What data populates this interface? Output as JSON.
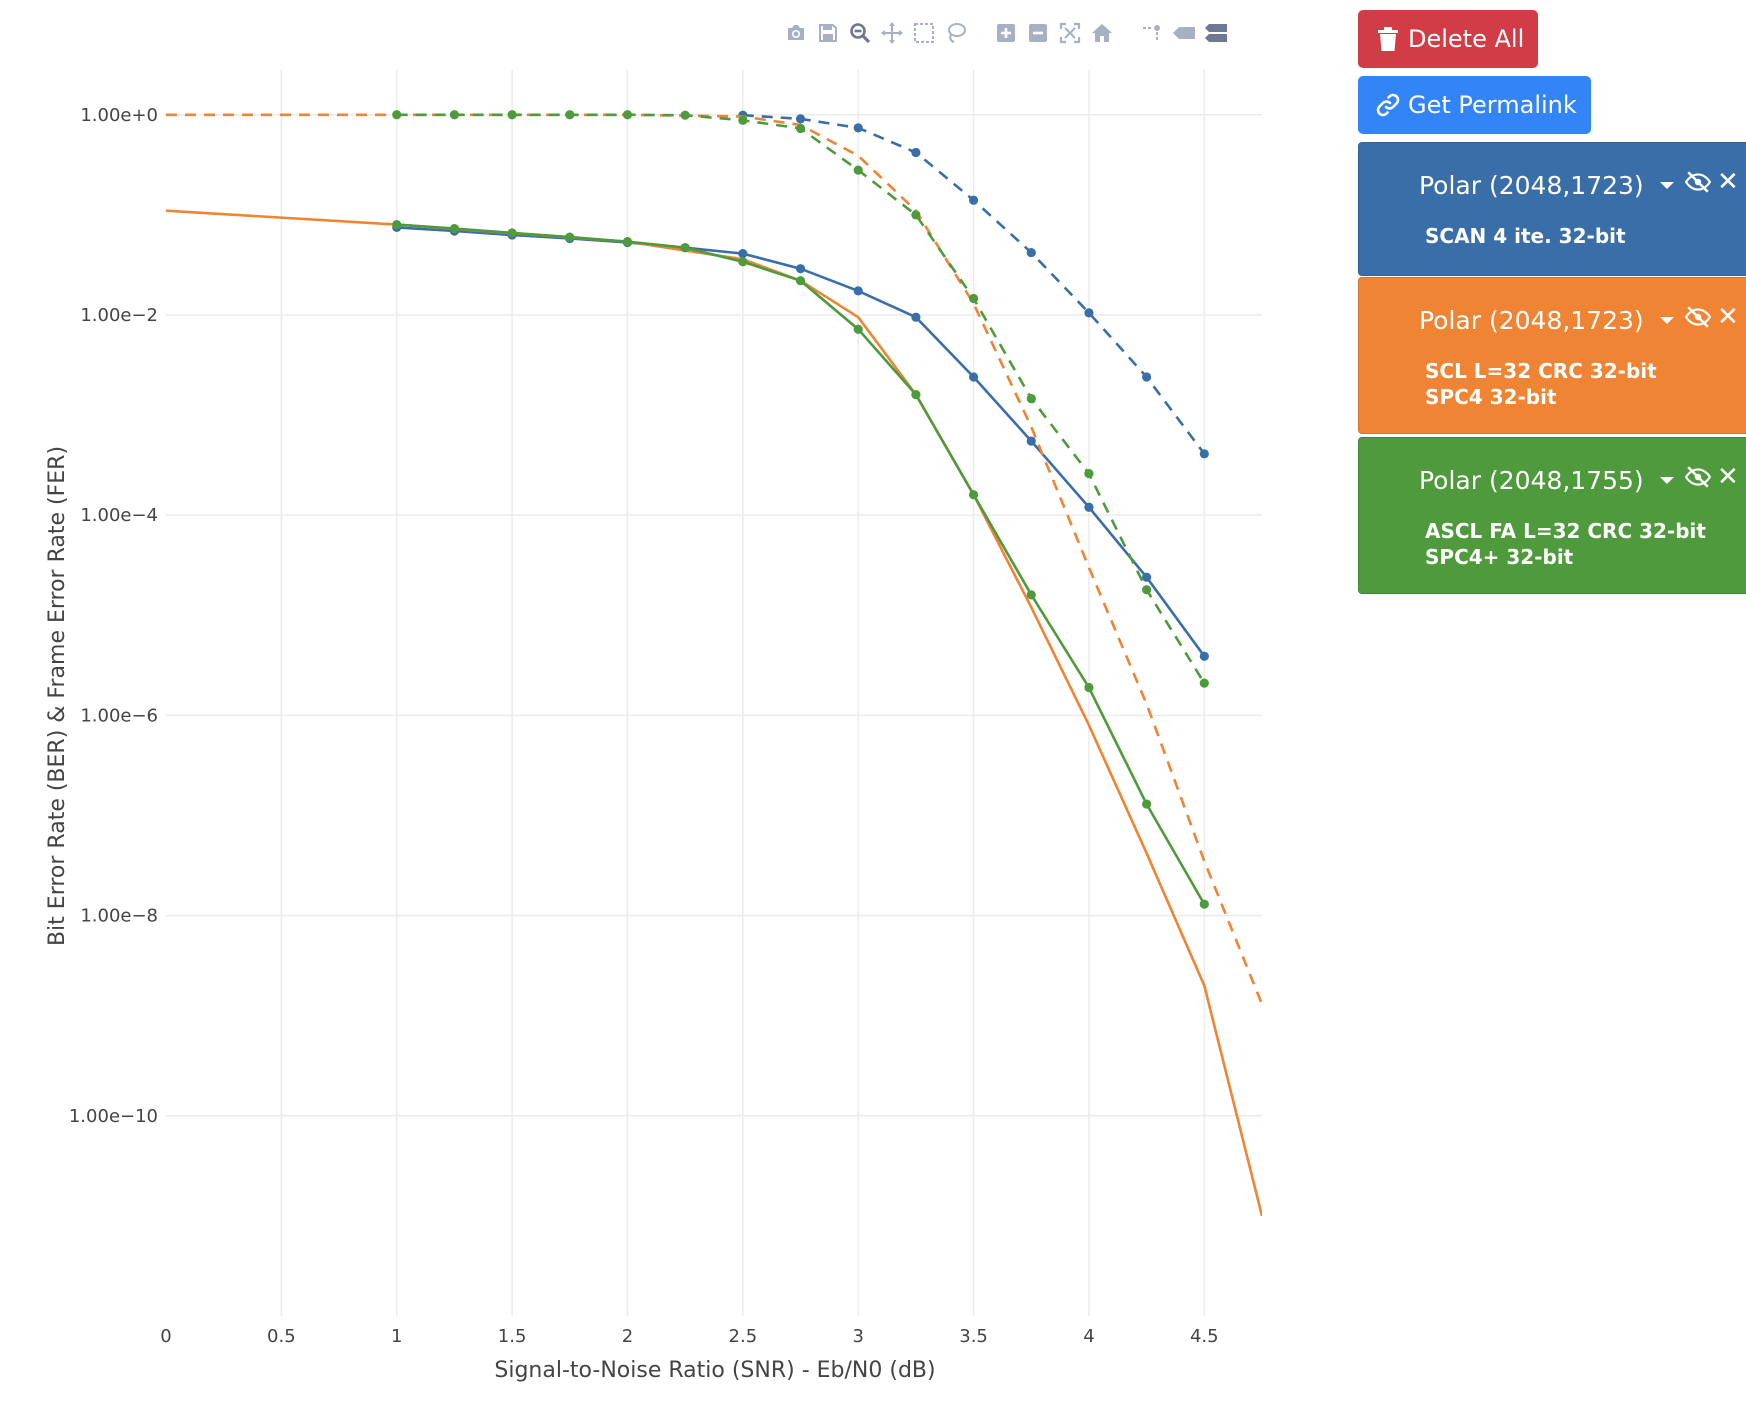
{
  "modebar": {
    "icons": [
      "camera-icon",
      "save-icon",
      "zoom-icon",
      "pan-icon",
      "box-select-icon",
      "lasso-select-icon",
      "zoom-in-icon",
      "zoom-out-icon",
      "autoscale-icon",
      "reset-axes-icon",
      "spike-lines-icon",
      "hover-closest-icon",
      "hover-compare-icon"
    ]
  },
  "buttons": {
    "delete_all": "Delete All",
    "permalink": "Get Permalink"
  },
  "curves": [
    {
      "title": "Polar (2048,1723)",
      "subtitle": "SCAN 4 ite. 32-bit",
      "color": "#3a6ea8"
    },
    {
      "title": "Polar (2048,1723)",
      "subtitle": "SCL L=32 CRC 32-bit SPC4 32-bit",
      "color": "#ee8434"
    },
    {
      "title": "Polar (2048,1755)",
      "subtitle": "ASCL FA L=32 CRC 32-bit SPC4+ 32-bit",
      "color": "#4e9a3c"
    }
  ],
  "chart_data": {
    "type": "line",
    "xlabel": "Signal-to-Noise Ratio (SNR) - Eb/N0 (dB)",
    "ylabel": "Bit Error Rate (BER) & Frame Error Rate (FER)",
    "x_scale": "linear",
    "y_scale": "log",
    "xlim": [
      0,
      4.75
    ],
    "ylim": [
      1e-12,
      2.8
    ],
    "grid": true,
    "x_ticks": [
      "0",
      "0.5",
      "1",
      "1.5",
      "2",
      "2.5",
      "3",
      "3.5",
      "4",
      "4.5"
    ],
    "x_tick_values": [
      0,
      0.5,
      1,
      1.5,
      2,
      2.5,
      3,
      3.5,
      4,
      4.5
    ],
    "y_ticks": [
      "1.00e+0",
      "1.00e−2",
      "1.00e−4",
      "1.00e−6",
      "1.00e−8",
      "1.00e−10"
    ],
    "y_tick_values": [
      1,
      0.01,
      0.0001,
      1e-06,
      1e-08,
      1e-10
    ],
    "series": [
      {
        "color": "#3a6ea8",
        "dash": "solid",
        "markers": true,
        "x": [
          1,
          1.25,
          1.5,
          1.75,
          2,
          2.25,
          2.5,
          2.75,
          3,
          3.25,
          3.5,
          3.75,
          4,
          4.25,
          4.5
        ],
        "y": [
          0.075,
          0.069,
          0.063,
          0.058,
          0.053,
          0.047,
          0.041,
          0.029,
          0.0174,
          0.0095,
          0.0024,
          0.00055,
          0.00012,
          2.4e-05,
          3.9e-06
        ]
      },
      {
        "color": "#3a6ea8",
        "dash": "dash",
        "markers": true,
        "x": [
          2.5,
          2.75,
          3,
          3.25,
          3.5,
          3.75,
          4,
          4.25,
          4.5
        ],
        "y": [
          0.99,
          0.91,
          0.74,
          0.42,
          0.14,
          0.042,
          0.0105,
          0.0024,
          0.00041
        ]
      },
      {
        "color": "#ee8434",
        "dash": "solid",
        "markers": false,
        "x": [
          0,
          1,
          2,
          2.5,
          2.75,
          3,
          3.25,
          3.5,
          3.75,
          4,
          4.25,
          4.5,
          4.75
        ],
        "y": [
          0.11,
          0.08,
          0.054,
          0.036,
          0.022,
          0.0095,
          0.0016,
          0.00016,
          1.2e-05,
          8e-07,
          4.2e-08,
          2e-09,
          1e-11
        ]
      },
      {
        "color": "#ee8434",
        "dash": "dash",
        "markers": false,
        "x": [
          0,
          1,
          2,
          2.5,
          2.75,
          3,
          3.25,
          3.5,
          3.75,
          4,
          4.25,
          4.5,
          4.75
        ],
        "y": [
          1,
          1,
          1,
          0.96,
          0.79,
          0.39,
          0.11,
          0.013,
          0.00076,
          3e-05,
          1.3e-06,
          3.5e-08,
          1.3e-09
        ]
      },
      {
        "color": "#4e9a3c",
        "dash": "solid",
        "markers": true,
        "x": [
          1,
          1.25,
          1.5,
          1.75,
          2,
          2.25,
          2.5,
          2.75,
          3,
          3.25,
          3.5,
          3.75,
          4,
          4.25,
          4.5
        ],
        "y": [
          0.08,
          0.073,
          0.066,
          0.06,
          0.054,
          0.047,
          0.034,
          0.022,
          0.0072,
          0.0016,
          0.00016,
          1.6e-05,
          1.9e-06,
          1.3e-07,
          1.3e-08
        ]
      },
      {
        "color": "#4e9a3c",
        "dash": "dash",
        "markers": true,
        "x": [
          1,
          1.25,
          1.5,
          1.75,
          2,
          2.25,
          2.5,
          2.75,
          3,
          3.25,
          3.5,
          3.75,
          4,
          4.25,
          4.5
        ],
        "y": [
          1,
          1,
          1,
          1,
          1,
          0.99,
          0.88,
          0.73,
          0.28,
          0.1,
          0.0146,
          0.00146,
          0.00026,
          1.8e-05,
          2.1e-06
        ]
      }
    ]
  }
}
